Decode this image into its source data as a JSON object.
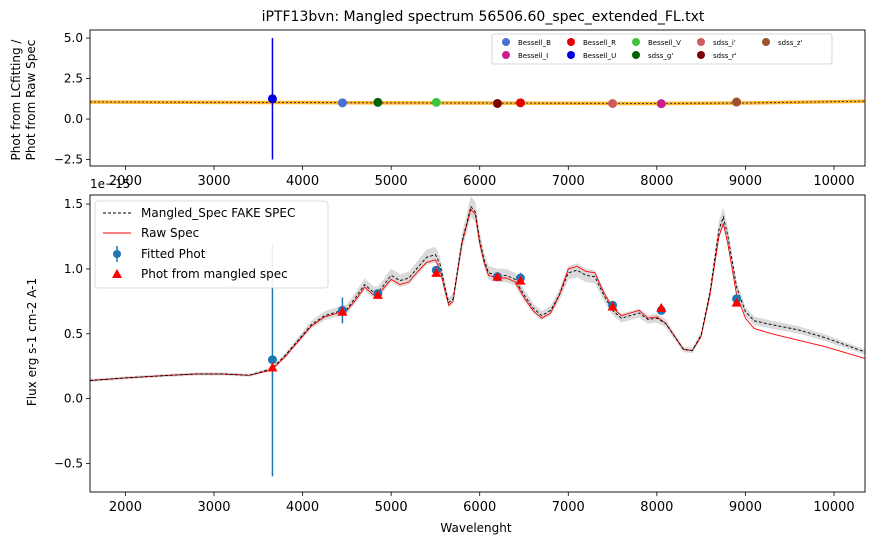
{
  "chart_data": [
    {
      "type": "scatter",
      "title": "iPTF13bvn: Mangled spectrum 56506.60_spec_extended_FL.txt",
      "ylabel_lines": [
        "Phot from LCfitting /",
        "Phot from Raw Spec"
      ],
      "xlim": [
        1600,
        10350
      ],
      "ylim": [
        -2.9,
        5.5
      ],
      "xticks": [
        2000,
        3000,
        4000,
        5000,
        6000,
        7000,
        8000,
        9000,
        10000
      ],
      "xtick_labels": [
        "2000",
        "3000",
        "4000",
        "5000",
        "6000",
        "7000",
        "8000",
        "9000",
        "10000"
      ],
      "yticks": [
        -2.5,
        0.0,
        2.5,
        5.0
      ],
      "ytick_labels": [
        "−2.5",
        "0.0",
        "2.5",
        "5.0"
      ],
      "ratio_line": {
        "x": [
          1600,
          3000,
          4000,
          5000,
          6000,
          7000,
          8000,
          9000,
          10350
        ],
        "y": [
          1.05,
          1.03,
          1.02,
          1.0,
          0.99,
          0.97,
          0.96,
          0.99,
          1.1
        ]
      },
      "legend_position": "upper-right",
      "points": [
        {
          "name": "Bessell_B",
          "x": 4450,
          "y": 1.0,
          "color": "#4a6fd6"
        },
        {
          "name": "Bessell_I",
          "x": 8050,
          "y": 0.95,
          "color": "#c71f8e"
        },
        {
          "name": "Bessell_R",
          "x": 6460,
          "y": 1.0,
          "color": "#e50000"
        },
        {
          "name": "Bessell_U",
          "x": 3660,
          "y": 1.25,
          "yerr": 3.75,
          "color": "#0000e0"
        },
        {
          "name": "Bessell_V",
          "x": 5510,
          "y": 1.03,
          "color": "#3ec53e"
        },
        {
          "name": "sdss_g'",
          "x": 4850,
          "y": 1.03,
          "color": "#006400"
        },
        {
          "name": "sdss_i'",
          "x": 7500,
          "y": 0.96,
          "color": "#cd5c5c"
        },
        {
          "name": "sdss_r'",
          "x": 6200,
          "y": 0.96,
          "color": "#7f0000"
        },
        {
          "name": "sdss_z'",
          "x": 8900,
          "y": 1.05,
          "color": "#a0522d"
        }
      ]
    },
    {
      "type": "line",
      "xlabel": "Wavelenght",
      "ylabel": "Flux erg s-1 cm-2 A-1",
      "offset_text": "1e−15",
      "xlim": [
        1600,
        10350
      ],
      "ylim": [
        -0.72,
        1.57
      ],
      "xticks": [
        2000,
        3000,
        4000,
        5000,
        6000,
        7000,
        8000,
        9000,
        10000
      ],
      "xtick_labels": [
        "2000",
        "3000",
        "4000",
        "5000",
        "6000",
        "7000",
        "8000",
        "9000",
        "10000"
      ],
      "yticks": [
        -0.5,
        0.0,
        0.5,
        1.0,
        1.5
      ],
      "ytick_labels": [
        "−0.5",
        "0.0",
        "0.5",
        "1.0",
        "1.5"
      ],
      "legend_position": "upper-left",
      "legend": [
        "Mangled_Spec FAKE SPEC",
        "Raw Spec",
        "Fitted Phot",
        "Phot from mangled spec"
      ],
      "raw_spec": {
        "name": "Raw Spec",
        "color": "#ff0000",
        "x": [
          1600,
          2000,
          2500,
          2800,
          3100,
          3400,
          3650,
          3800,
          3950,
          4100,
          4250,
          4400,
          4500,
          4600,
          4700,
          4800,
          4850,
          4900,
          5000,
          5100,
          5200,
          5300,
          5400,
          5500,
          5550,
          5600,
          5650,
          5700,
          5800,
          5900,
          5950,
          6000,
          6050,
          6100,
          6200,
          6300,
          6400,
          6500,
          6600,
          6700,
          6800,
          6900,
          7000,
          7100,
          7200,
          7300,
          7400,
          7500,
          7600,
          7700,
          7800,
          7900,
          8000,
          8100,
          8200,
          8300,
          8400,
          8500,
          8600,
          8700,
          8750,
          8800,
          8900,
          9000,
          9100,
          9300,
          9600,
          9900,
          10100,
          10350
        ],
        "y": [
          0.14,
          0.16,
          0.18,
          0.19,
          0.19,
          0.18,
          0.22,
          0.32,
          0.44,
          0.56,
          0.63,
          0.66,
          0.68,
          0.76,
          0.86,
          0.8,
          0.8,
          0.84,
          0.92,
          0.88,
          0.9,
          0.98,
          1.05,
          1.07,
          1.0,
          0.85,
          0.72,
          0.75,
          1.2,
          1.46,
          1.42,
          1.2,
          1.05,
          0.95,
          0.93,
          0.93,
          0.9,
          0.78,
          0.68,
          0.62,
          0.66,
          0.8,
          1.0,
          1.02,
          0.98,
          0.97,
          0.82,
          0.7,
          0.64,
          0.66,
          0.68,
          0.62,
          0.63,
          0.58,
          0.48,
          0.38,
          0.37,
          0.48,
          0.8,
          1.25,
          1.35,
          1.2,
          0.8,
          0.62,
          0.54,
          0.5,
          0.45,
          0.4,
          0.36,
          0.31
        ]
      },
      "mangled_spec": {
        "name": "Mangled_Spec FAKE SPEC",
        "color": "#000000",
        "x": [
          1600,
          2000,
          2500,
          2800,
          3100,
          3400,
          3650,
          3800,
          3950,
          4100,
          4250,
          4400,
          4500,
          4600,
          4700,
          4800,
          4850,
          4900,
          5000,
          5100,
          5200,
          5300,
          5400,
          5500,
          5550,
          5600,
          5650,
          5700,
          5800,
          5900,
          5950,
          6000,
          6050,
          6100,
          6200,
          6300,
          6400,
          6500,
          6600,
          6700,
          6800,
          6900,
          7000,
          7100,
          7200,
          7300,
          7400,
          7500,
          7600,
          7700,
          7800,
          7900,
          8000,
          8100,
          8200,
          8300,
          8400,
          8500,
          8600,
          8700,
          8750,
          8800,
          8900,
          9000,
          9100,
          9300,
          9600,
          9900,
          10100,
          10350
        ],
        "y": [
          0.14,
          0.16,
          0.18,
          0.19,
          0.19,
          0.18,
          0.23,
          0.33,
          0.45,
          0.57,
          0.64,
          0.67,
          0.69,
          0.78,
          0.88,
          0.82,
          0.82,
          0.86,
          0.95,
          0.91,
          0.93,
          1.01,
          1.09,
          1.11,
          1.04,
          0.88,
          0.74,
          0.77,
          1.21,
          1.48,
          1.44,
          1.22,
          1.07,
          0.97,
          0.95,
          0.95,
          0.92,
          0.8,
          0.7,
          0.64,
          0.68,
          0.8,
          0.97,
          0.99,
          0.95,
          0.94,
          0.8,
          0.68,
          0.62,
          0.64,
          0.66,
          0.61,
          0.62,
          0.58,
          0.48,
          0.38,
          0.37,
          0.49,
          0.82,
          1.3,
          1.4,
          1.26,
          0.86,
          0.67,
          0.6,
          0.57,
          0.53,
          0.47,
          0.42,
          0.36
        ]
      },
      "fitted_phot": {
        "name": "Fitted Phot",
        "color": "#1f77b4",
        "points": [
          {
            "x": 3660,
            "y": 0.3,
            "yerr": 0.9
          },
          {
            "x": 4450,
            "y": 0.68,
            "yerr": 0.1
          },
          {
            "x": 4850,
            "y": 0.81,
            "yerr": 0.02
          },
          {
            "x": 5510,
            "y": 0.99,
            "yerr": 0.02
          },
          {
            "x": 6200,
            "y": 0.94,
            "yerr": 0.02
          },
          {
            "x": 6460,
            "y": 0.93,
            "yerr": 0.04
          },
          {
            "x": 7500,
            "y": 0.72,
            "yerr": 0.02
          },
          {
            "x": 8050,
            "y": 0.68,
            "yerr": 0.02
          },
          {
            "x": 8900,
            "y": 0.77,
            "yerr": 0.02
          }
        ]
      },
      "phot_mangled": {
        "name": "Phot from mangled spec",
        "color": "#ff0000",
        "points": [
          {
            "x": 3660,
            "y": 0.24
          },
          {
            "x": 4450,
            "y": 0.67
          },
          {
            "x": 4850,
            "y": 0.8
          },
          {
            "x": 5510,
            "y": 0.97
          },
          {
            "x": 6200,
            "y": 0.94
          },
          {
            "x": 6460,
            "y": 0.91
          },
          {
            "x": 7500,
            "y": 0.71
          },
          {
            "x": 8050,
            "y": 0.7
          },
          {
            "x": 8900,
            "y": 0.74
          }
        ]
      }
    }
  ]
}
